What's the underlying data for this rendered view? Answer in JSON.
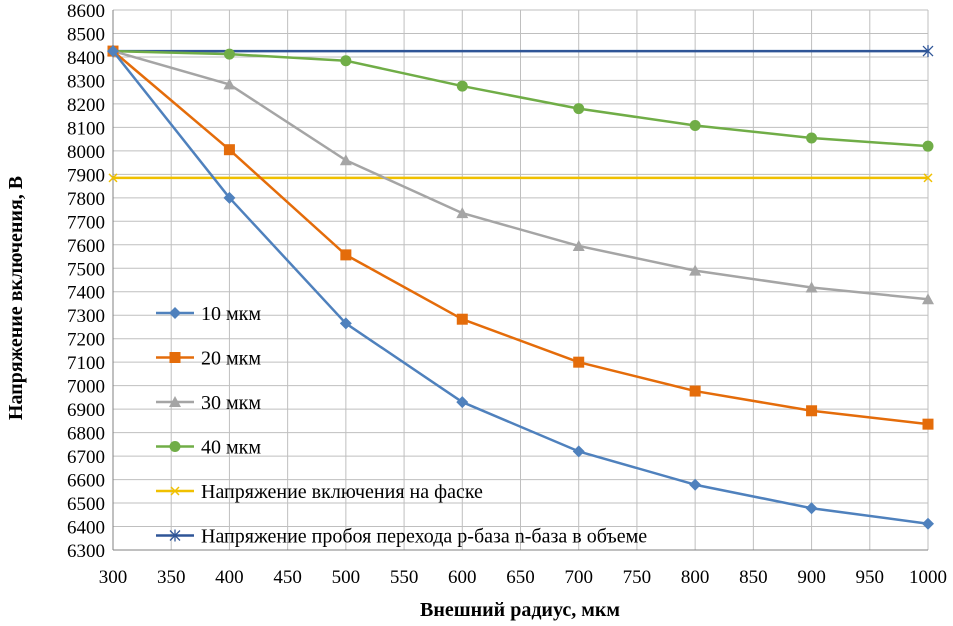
{
  "chart_data": {
    "type": "line",
    "xlabel": "Внешний радиус, мкм",
    "ylabel": "Напряжение включения, В",
    "xlim": [
      300,
      1000
    ],
    "ylim": [
      6300,
      8600
    ],
    "x_ticks": [
      "300",
      "350",
      "400",
      "450",
      "500",
      "550",
      "600",
      "650",
      "700",
      "750",
      "800",
      "850",
      "900",
      "950",
      "1000"
    ],
    "y_ticks": [
      "6300",
      "6400",
      "6500",
      "6600",
      "6700",
      "6800",
      "6900",
      "7000",
      "7100",
      "7200",
      "7300",
      "7400",
      "7500",
      "7600",
      "7700",
      "7800",
      "7900",
      "8000",
      "8100",
      "8200",
      "8300",
      "8400",
      "8500",
      "8600"
    ],
    "grid": true,
    "legend_position": "left",
    "series": [
      {
        "name": "10 мкм",
        "color": "#4f81bd",
        "marker": "diamond",
        "x": [
          300,
          400,
          500,
          600,
          700,
          800,
          900,
          1000
        ],
        "y": [
          8425,
          7800,
          7265,
          6930,
          6720,
          6578,
          6478,
          6412
        ]
      },
      {
        "name": "20 мкм",
        "color": "#e46c0a",
        "marker": "square",
        "x": [
          300,
          400,
          500,
          600,
          700,
          800,
          900,
          1000
        ],
        "y": [
          8425,
          8005,
          7557,
          7283,
          7100,
          6977,
          6893,
          6836
        ]
      },
      {
        "name": "30 мкм",
        "color": "#a5a5a5",
        "marker": "triangle",
        "x": [
          300,
          400,
          500,
          600,
          700,
          800,
          900,
          1000
        ],
        "y": [
          8425,
          8283,
          7960,
          7735,
          7595,
          7490,
          7418,
          7368
        ]
      },
      {
        "name": "40 мкм",
        "color": "#70ad47",
        "marker": "circle",
        "x": [
          300,
          400,
          500,
          600,
          700,
          800,
          900,
          1000
        ],
        "y": [
          8425,
          8412,
          8384,
          8276,
          8180,
          8108,
          8055,
          8020
        ]
      },
      {
        "name": "Напряжение включения на фаске",
        "color": "#f0c000",
        "marker": "x",
        "x": [
          300,
          1000
        ],
        "y": [
          7885,
          7885
        ]
      },
      {
        "name": "Напряжение пробоя перехода p-база n-база в объеме",
        "color": "#2f5597",
        "marker": "star",
        "x": [
          300,
          1000
        ],
        "y": [
          8425,
          8425
        ]
      }
    ]
  }
}
